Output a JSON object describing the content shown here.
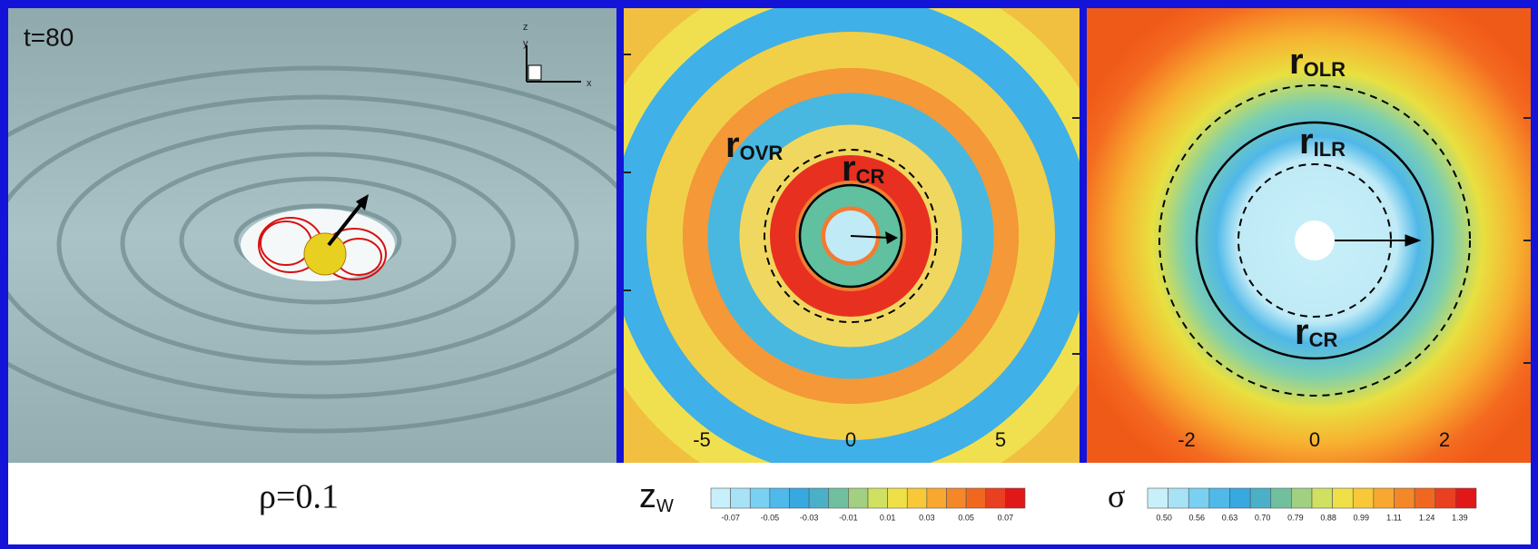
{
  "panels": [
    {
      "time_label": "t=80",
      "axes": [
        "z",
        "y",
        "x"
      ],
      "caption": "ρ=0.1"
    },
    {
      "ticks": [
        "-5",
        "0",
        "5"
      ],
      "labels": [
        {
          "main": "r",
          "sub": "OVR"
        },
        {
          "main": "r",
          "sub": "CR"
        }
      ],
      "colorbar": {
        "symbol": {
          "main": "z",
          "sub": "W"
        },
        "ticks": [
          "-0.07",
          "-0.05",
          "-0.03",
          "-0.01",
          "0.01",
          "0.03",
          "0.05",
          "0.07"
        ]
      }
    },
    {
      "ticks": [
        "-2",
        "0",
        "2"
      ],
      "labels": [
        {
          "main": "r",
          "sub": "OLR"
        },
        {
          "main": "r",
          "sub": "ILR"
        },
        {
          "main": "r",
          "sub": "CR"
        }
      ],
      "colorbar": {
        "symbol": "σ",
        "ticks": [
          "0.50",
          "0.56",
          "0.63",
          "0.70",
          "0.79",
          "0.88",
          "0.99",
          "1.11",
          "1.24",
          "1.39"
        ]
      }
    }
  ]
}
